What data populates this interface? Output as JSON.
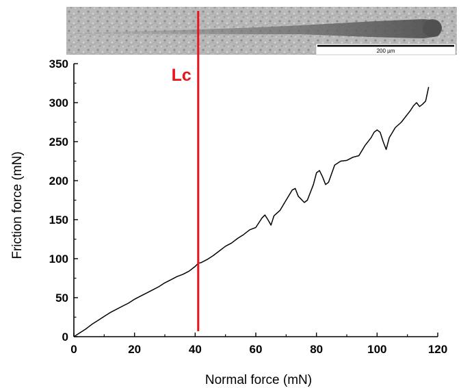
{
  "chart_data": {
    "type": "line",
    "xlabel": "Normal force (mN)",
    "ylabel": "Friction force (mN)",
    "xlim": [
      0,
      120
    ],
    "ylim": [
      0,
      350
    ],
    "xticks": [
      "0",
      "20",
      "40",
      "60",
      "80",
      "100",
      "120"
    ],
    "yticks": [
      "0",
      "50",
      "100",
      "150",
      "200",
      "250",
      "300",
      "350"
    ],
    "grid": false,
    "series": [
      {
        "color": "#000000",
        "x": [
          0,
          2,
          4,
          6,
          8,
          10,
          12,
          14,
          16,
          18,
          20,
          22,
          24,
          26,
          28,
          30,
          32,
          34,
          36,
          38,
          40,
          41,
          42,
          44,
          46,
          48,
          50,
          52,
          54,
          56,
          58,
          60,
          62,
          63,
          64,
          65,
          66,
          68,
          70,
          72,
          73,
          74,
          76,
          77,
          78,
          79,
          80,
          81,
          82,
          83,
          84,
          86,
          88,
          90,
          92,
          94,
          96,
          98,
          99,
          100,
          101,
          102,
          103,
          104,
          106,
          108,
          110,
          111,
          112,
          113,
          114,
          115,
          116,
          117
        ],
        "y": [
          0,
          5,
          10,
          16,
          21,
          26,
          31,
          35,
          39,
          43,
          48,
          52,
          56,
          60,
          64,
          69,
          73,
          77,
          80,
          84,
          90,
          94,
          95,
          99,
          104,
          110,
          116,
          120,
          126,
          131,
          137,
          140,
          152,
          156,
          150,
          143,
          155,
          162,
          175,
          188,
          190,
          180,
          172,
          175,
          185,
          195,
          210,
          213,
          205,
          195,
          198,
          220,
          225,
          226,
          230,
          232,
          245,
          255,
          262,
          265,
          262,
          250,
          240,
          255,
          268,
          275,
          285,
          290,
          296,
          300,
          295,
          298,
          302,
          320
        ]
      }
    ],
    "annotations": [
      {
        "text": "Lc",
        "x": 41,
        "color": "#e8141b"
      }
    ],
    "inset": {
      "scale_bar_label": "200 µm"
    }
  }
}
